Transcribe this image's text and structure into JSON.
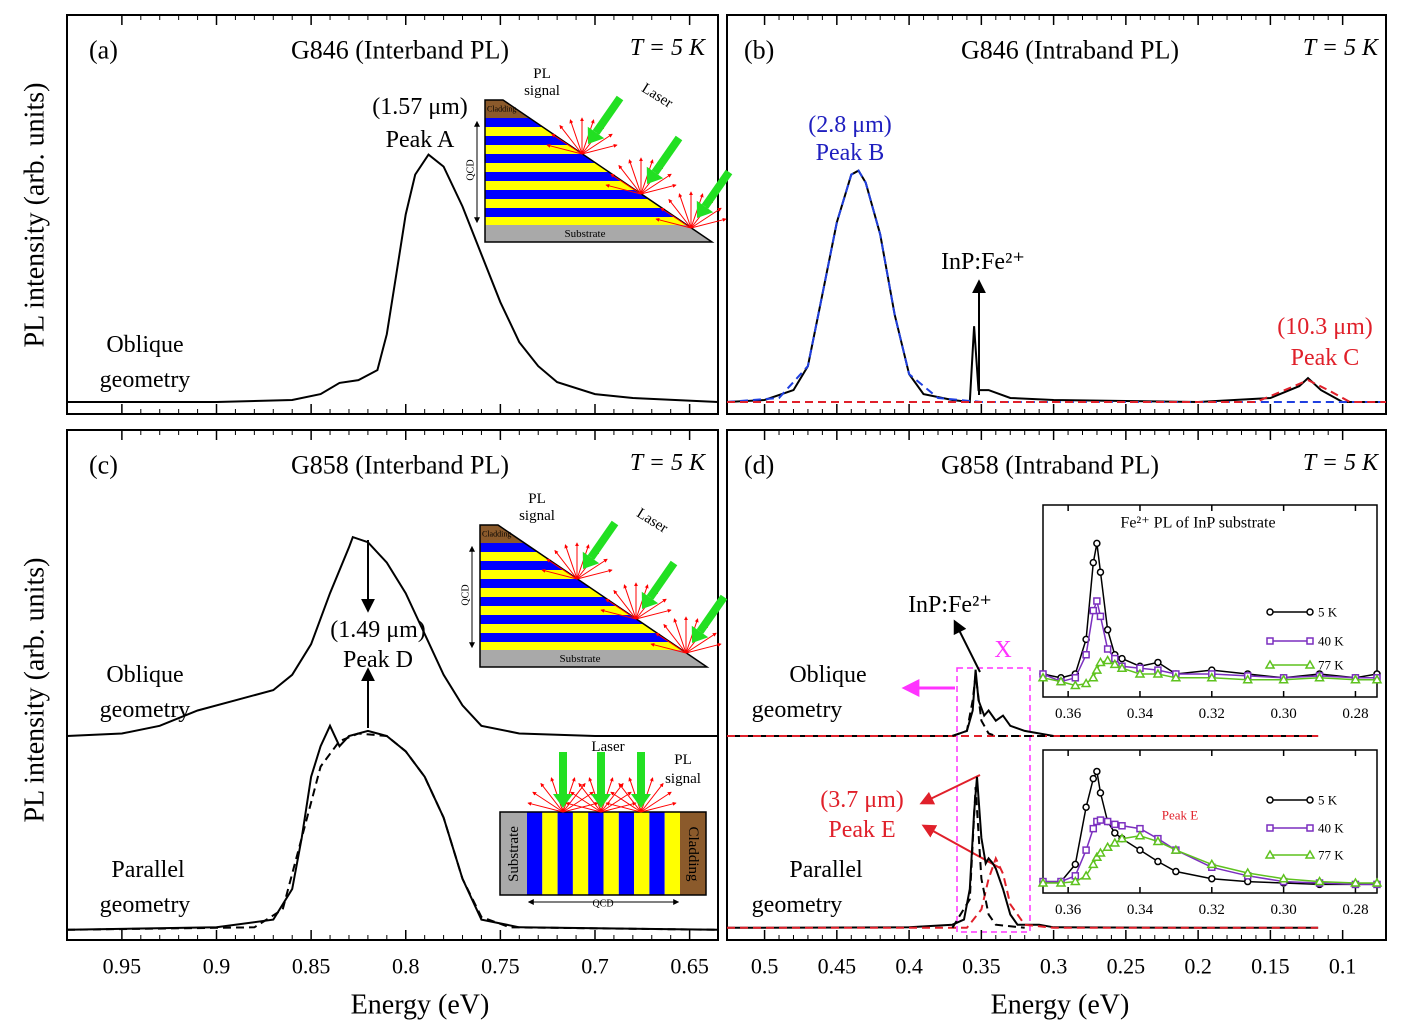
{
  "chart_data": [
    {
      "type": "line",
      "panel_label": "(a)",
      "title": "G846 (Interband PL)",
      "temperature": "T = 5 K",
      "ylabel": "PL intensity (arb. units)",
      "xlim": [
        0.979,
        0.635
      ],
      "xticks": [
        0.95,
        0.9,
        0.85,
        0.8,
        0.75,
        0.7,
        0.65
      ],
      "ylim": [
        0,
        1
      ],
      "series": [
        {
          "color": "#000000",
          "dashed": false,
          "x": [
            0.979,
            0.9,
            0.86,
            0.845,
            0.835,
            0.825,
            0.815,
            0.81,
            0.805,
            0.8,
            0.795,
            0.788,
            0.78,
            0.77,
            0.76,
            0.75,
            0.74,
            0.73,
            0.72,
            0.7,
            0.68,
            0.635
          ],
          "values": [
            0.03,
            0.03,
            0.035,
            0.05,
            0.078,
            0.085,
            0.11,
            0.2,
            0.35,
            0.5,
            0.6,
            0.65,
            0.62,
            0.52,
            0.4,
            0.28,
            0.18,
            0.12,
            0.08,
            0.05,
            0.04,
            0.03
          ]
        }
      ],
      "annotations": [
        {
          "text": "(1.57 μm)",
          "color": "#000000"
        },
        {
          "text": "Peak A",
          "color": "#000000"
        },
        {
          "text": "Oblique",
          "color": "#000000"
        },
        {
          "text": "geometry",
          "color": "#000000"
        }
      ]
    },
    {
      "type": "line",
      "panel_label": "(b)",
      "title": "G846 (Intraband PL)",
      "temperature": "T = 5 K",
      "xlim": [
        0.526,
        0.07
      ],
      "xticks": [
        0.5,
        0.45,
        0.4,
        0.35,
        0.3,
        0.25,
        0.2,
        0.15,
        0.1
      ],
      "ylim": [
        0,
        1
      ],
      "series": [
        {
          "color": "#000000",
          "dashed": false,
          "x": [
            0.526,
            0.5,
            0.48,
            0.47,
            0.46,
            0.45,
            0.44,
            0.435,
            0.43,
            0.42,
            0.41,
            0.4,
            0.39,
            0.37,
            0.358,
            0.355,
            0.352,
            0.345,
            0.33,
            0.3,
            0.2,
            0.15,
            0.13,
            0.124,
            0.115,
            0.1,
            0.07
          ],
          "values": [
            0.03,
            0.035,
            0.06,
            0.12,
            0.3,
            0.48,
            0.6,
            0.61,
            0.58,
            0.45,
            0.25,
            0.1,
            0.05,
            0.035,
            0.03,
            0.22,
            0.06,
            0.06,
            0.04,
            0.035,
            0.03,
            0.04,
            0.07,
            0.09,
            0.06,
            0.03,
            0.03
          ]
        },
        {
          "color": "#1f3fe0",
          "dashed": true,
          "x": [
            0.526,
            0.49,
            0.47,
            0.46,
            0.45,
            0.44,
            0.435,
            0.43,
            0.42,
            0.41,
            0.4,
            0.38,
            0.35,
            0.07
          ],
          "values": [
            0.03,
            0.04,
            0.12,
            0.3,
            0.48,
            0.6,
            0.61,
            0.58,
            0.45,
            0.25,
            0.1,
            0.04,
            0.03,
            0.03
          ]
        },
        {
          "color": "#e0202a",
          "dashed": true,
          "x": [
            0.526,
            0.16,
            0.14,
            0.124,
            0.11,
            0.095,
            0.07
          ],
          "values": [
            0.03,
            0.03,
            0.06,
            0.085,
            0.06,
            0.03,
            0.03
          ]
        }
      ],
      "annotations": [
        {
          "text": "(2.8 μm)",
          "color": "#1f1fbf"
        },
        {
          "text": "Peak B",
          "color": "#1f1fbf"
        },
        {
          "text": "InP:Fe²⁺",
          "color": "#000000"
        },
        {
          "text": "(10.3 μm)",
          "color": "#e0202a"
        },
        {
          "text": "Peak C",
          "color": "#e0202a"
        }
      ]
    },
    {
      "type": "line",
      "panel_label": "(c)",
      "title": "G858 (Interband PL)",
      "temperature": "T = 5 K",
      "ylabel": "PL intensity (arb. units)",
      "xlabel": "Energy (eV)",
      "xlim": [
        0.979,
        0.635
      ],
      "xticks": [
        0.95,
        0.9,
        0.85,
        0.8,
        0.75,
        0.7,
        0.65
      ],
      "ylim": [
        0,
        1
      ],
      "series": [
        {
          "color": "#000000",
          "dashed": false,
          "x": [
            0.979,
            0.95,
            0.93,
            0.91,
            0.89,
            0.87,
            0.86,
            0.85,
            0.84,
            0.83,
            0.828,
            0.82,
            0.81,
            0.8,
            0.79,
            0.78,
            0.77,
            0.76,
            0.74,
            0.7,
            0.635
          ],
          "values": [
            0.4,
            0.405,
            0.42,
            0.45,
            0.47,
            0.49,
            0.52,
            0.58,
            0.68,
            0.77,
            0.79,
            0.78,
            0.74,
            0.68,
            0.6,
            0.52,
            0.46,
            0.42,
            0.405,
            0.4,
            0.4
          ]
        },
        {
          "color": "#000000",
          "dashed": false,
          "x": [
            0.979,
            0.9,
            0.87,
            0.86,
            0.855,
            0.85,
            0.845,
            0.84,
            0.835,
            0.83,
            0.82,
            0.81,
            0.8,
            0.79,
            0.78,
            0.77,
            0.76,
            0.74,
            0.635
          ],
          "values": [
            0.02,
            0.025,
            0.04,
            0.1,
            0.2,
            0.32,
            0.38,
            0.42,
            0.38,
            0.4,
            0.41,
            0.4,
            0.37,
            0.32,
            0.24,
            0.12,
            0.04,
            0.025,
            0.02
          ]
        },
        {
          "color": "#000000",
          "dashed": true,
          "x": [
            0.979,
            0.88,
            0.865,
            0.855,
            0.845,
            0.835,
            0.825,
            0.81,
            0.8,
            0.79,
            0.78,
            0.77,
            0.76,
            0.745,
            0.635
          ],
          "values": [
            0.02,
            0.025,
            0.06,
            0.2,
            0.34,
            0.39,
            0.405,
            0.4,
            0.37,
            0.32,
            0.24,
            0.12,
            0.045,
            0.025,
            0.02
          ]
        }
      ],
      "annotations": [
        {
          "text": "(1.49 μm)",
          "color": "#000000"
        },
        {
          "text": "Peak D",
          "color": "#000000"
        },
        {
          "text": "Oblique",
          "color": "#000000"
        },
        {
          "text": "geometry",
          "color": "#000000"
        },
        {
          "text": "Parallel",
          "color": "#000000"
        },
        {
          "text": "geometry",
          "color": "#000000"
        }
      ]
    },
    {
      "type": "line",
      "panel_label": "(d)",
      "title": "G858 (Intraband PL)",
      "temperature": "T = 5 K",
      "xlabel": "Energy (eV)",
      "xlim": [
        0.526,
        0.07
      ],
      "xticks": [
        0.5,
        0.45,
        0.4,
        0.35,
        0.3,
        0.25,
        0.2,
        0.15,
        0.1
      ],
      "ylim": [
        0,
        1
      ],
      "series": [
        {
          "color": "#000000",
          "dashed": false,
          "x": [
            0.526,
            0.45,
            0.4,
            0.37,
            0.36,
            0.356,
            0.354,
            0.352,
            0.348,
            0.345,
            0.34,
            0.335,
            0.33,
            0.32,
            0.3,
            0.2,
            0.117
          ],
          "values": [
            0.4,
            0.4,
            0.4,
            0.4,
            0.41,
            0.45,
            0.53,
            0.47,
            0.44,
            0.45,
            0.43,
            0.44,
            0.42,
            0.41,
            0.4,
            0.4,
            0.4
          ]
        },
        {
          "color": "#e0202a",
          "dashed": true,
          "x": [
            0.526,
            0.117
          ],
          "values": [
            0.4,
            0.4
          ]
        },
        {
          "color": "#000000",
          "dashed": true,
          "x": [
            0.37,
            0.36,
            0.356,
            0.354,
            0.35,
            0.345,
            0.34,
            0.3
          ],
          "values": [
            0.4,
            0.41,
            0.47,
            0.52,
            0.43,
            0.405,
            0.4,
            0.4
          ]
        },
        {
          "color": "#000000",
          "dashed": false,
          "x": [
            0.526,
            0.4,
            0.37,
            0.362,
            0.358,
            0.355,
            0.353,
            0.35,
            0.347,
            0.345,
            0.342,
            0.34,
            0.335,
            0.33,
            0.325,
            0.31,
            0.3,
            0.2,
            0.117
          ],
          "values": [
            0.024,
            0.025,
            0.03,
            0.04,
            0.1,
            0.25,
            0.32,
            0.2,
            0.15,
            0.16,
            0.15,
            0.14,
            0.1,
            0.05,
            0.03,
            0.03,
            0.025,
            0.024,
            0.024
          ]
        },
        {
          "color": "#e0202a",
          "dashed": true,
          "x": [
            0.526,
            0.36,
            0.35,
            0.345,
            0.34,
            0.335,
            0.33,
            0.32,
            0.3,
            0.117
          ],
          "values": [
            0.024,
            0.024,
            0.06,
            0.12,
            0.16,
            0.13,
            0.07,
            0.03,
            0.024,
            0.024
          ]
        },
        {
          "color": "#000000",
          "dashed": true,
          "x": [
            0.37,
            0.358,
            0.354,
            0.35,
            0.345,
            0.34,
            0.32
          ],
          "values": [
            0.024,
            0.08,
            0.3,
            0.12,
            0.05,
            0.03,
            0.024
          ]
        }
      ],
      "annotations": [
        {
          "text": "InP:Fe²⁺",
          "color": "#000000"
        },
        {
          "text": "X",
          "color": "#ff33ff"
        },
        {
          "text": "Oblique",
          "color": "#000000"
        },
        {
          "text": "geometry",
          "color": "#000000"
        },
        {
          "text": "(3.7 μm)",
          "color": "#e0202a"
        },
        {
          "text": "Peak E",
          "color": "#e0202a"
        },
        {
          "text": "Parallel",
          "color": "#000000"
        },
        {
          "text": "geometry",
          "color": "#000000"
        }
      ]
    },
    {
      "type": "line",
      "title": "Fe²⁺ PL of InP substrate",
      "xlim": [
        0.367,
        0.274
      ],
      "xticks": [
        0.36,
        0.34,
        0.32,
        {
          "value": 0.3,
          "label": "0.30"
        },
        0.28
      ],
      "ylim": [
        0,
        1
      ],
      "x": [
        0.367,
        0.362,
        0.358,
        0.355,
        0.353,
        0.352,
        0.351,
        0.349,
        0.347,
        0.345,
        0.34,
        0.335,
        0.33,
        0.32,
        0.31,
        0.3,
        0.29,
        0.28,
        0.274
      ],
      "series": [
        {
          "name": "5 K",
          "color": "#000000",
          "marker": "circle",
          "values": [
            0.12,
            0.1,
            0.12,
            0.3,
            0.7,
            0.8,
            0.65,
            0.35,
            0.22,
            0.2,
            0.16,
            0.18,
            0.12,
            0.14,
            0.12,
            0.1,
            0.12,
            0.1,
            0.12
          ]
        },
        {
          "name": "40 K",
          "color": "#7b2fbf",
          "marker": "square",
          "values": [
            0.12,
            0.08,
            0.1,
            0.22,
            0.45,
            0.5,
            0.42,
            0.25,
            0.2,
            0.16,
            0.15,
            0.14,
            0.12,
            0.12,
            0.11,
            0.1,
            0.11,
            0.1,
            0.1
          ]
        },
        {
          "name": "77 K",
          "color": "#5ec21e",
          "marker": "triangle",
          "values": [
            0.1,
            0.08,
            0.06,
            0.07,
            0.1,
            0.14,
            0.18,
            0.19,
            0.17,
            0.15,
            0.12,
            0.12,
            0.1,
            0.1,
            0.09,
            0.09,
            0.1,
            0.09,
            0.09
          ]
        }
      ]
    },
    {
      "type": "line",
      "xlim": [
        0.367,
        0.274
      ],
      "xticks": [
        0.36,
        0.34,
        0.32,
        {
          "value": 0.3,
          "label": "0.30"
        },
        0.28
      ],
      "ylim": [
        0,
        1
      ],
      "x": [
        0.367,
        0.362,
        0.358,
        0.355,
        0.353,
        0.352,
        0.351,
        0.349,
        0.347,
        0.345,
        0.34,
        0.335,
        0.33,
        0.32,
        0.31,
        0.3,
        0.29,
        0.28,
        0.274
      ],
      "series": [
        {
          "name": "5 K",
          "color": "#000000",
          "marker": "circle",
          "values": [
            0.08,
            0.08,
            0.2,
            0.6,
            0.8,
            0.85,
            0.7,
            0.5,
            0.42,
            0.38,
            0.3,
            0.22,
            0.15,
            0.1,
            0.08,
            0.07,
            0.06,
            0.06,
            0.06
          ]
        },
        {
          "name": "40 K",
          "color": "#7b2fbf",
          "marker": "square",
          "values": [
            0.08,
            0.08,
            0.12,
            0.3,
            0.45,
            0.5,
            0.51,
            0.5,
            0.48,
            0.47,
            0.45,
            0.38,
            0.3,
            0.18,
            0.12,
            0.08,
            0.07,
            0.06,
            0.06
          ]
        },
        {
          "name": "77 K",
          "color": "#5ec21e",
          "marker": "triangle",
          "values": [
            0.07,
            0.07,
            0.08,
            0.12,
            0.2,
            0.25,
            0.28,
            0.32,
            0.35,
            0.38,
            0.4,
            0.36,
            0.3,
            0.2,
            0.14,
            0.1,
            0.08,
            0.07,
            0.07
          ]
        }
      ],
      "annotations": [
        {
          "text": "Peak E",
          "color": "#e0202a"
        }
      ]
    }
  ],
  "schematics": [
    {
      "labels": [
        "PL",
        "signal",
        "Laser",
        "Cladding",
        "QCD",
        "Substrate"
      ]
    },
    {
      "labels": [
        "PL",
        "signal",
        "Laser",
        "Cladding",
        "QCD",
        "Substrate"
      ]
    },
    {
      "labels": [
        "PL",
        "signal",
        "Laser",
        "Cladding",
        "QCD",
        "Substrate"
      ]
    }
  ]
}
